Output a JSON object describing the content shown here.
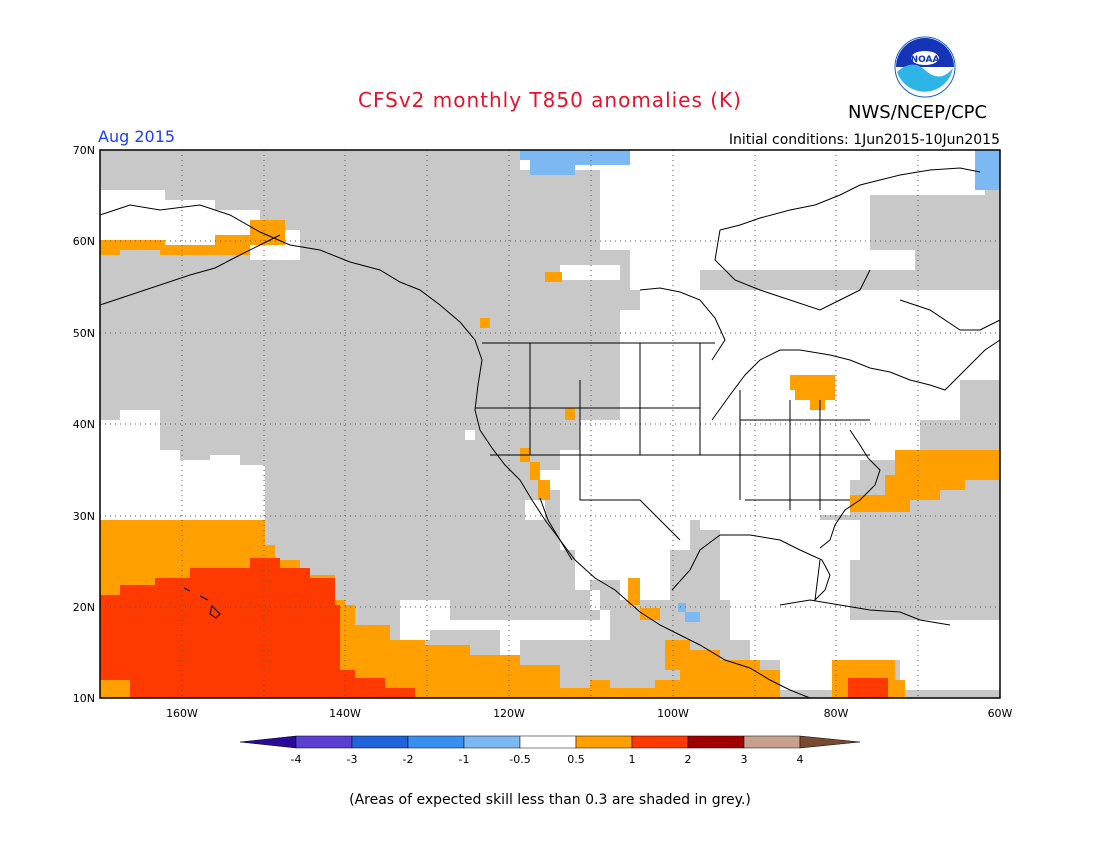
{
  "title": "CFSv2 monthly T850 anomalies (K)",
  "organization": "NWS/NCEP/CPC",
  "logo_text": "NOAA",
  "valid_month": "Aug 2015",
  "initial_conditions": "Initial conditions: 1Jun2015-10Jun2015",
  "footnote": "(Areas of expected skill less than 0.3 are shaded in grey.)",
  "map": {
    "lon_range": [
      -170,
      -60
    ],
    "lat_range": [
      10,
      70
    ],
    "lat_labels": [
      "70N",
      "60N",
      "50N",
      "40N",
      "30N",
      "20N",
      "10N"
    ],
    "lon_labels": [
      "160W",
      "140W",
      "120W",
      "100W",
      "80W",
      "60W"
    ],
    "grid": "dotted"
  },
  "colorbar": {
    "labels": [
      "-4",
      "-3",
      "-2",
      "-1",
      "-0.5",
      "0.5",
      "1",
      "2",
      "3",
      "4"
    ],
    "colors": [
      "#2a0a9a",
      "#5a3fd2",
      "#1f64d8",
      "#3a8ef0",
      "#7cb8f2",
      "#ffffff",
      "#ffa000",
      "#ff3a00",
      "#a00000",
      "#c8a090",
      "#7a4a30"
    ]
  },
  "colors": {
    "grey_mask": "#c8c8c8",
    "positive_small": "#ffa000",
    "positive_large": "#ff3a00",
    "negative_small": "#7cb8f2"
  }
}
